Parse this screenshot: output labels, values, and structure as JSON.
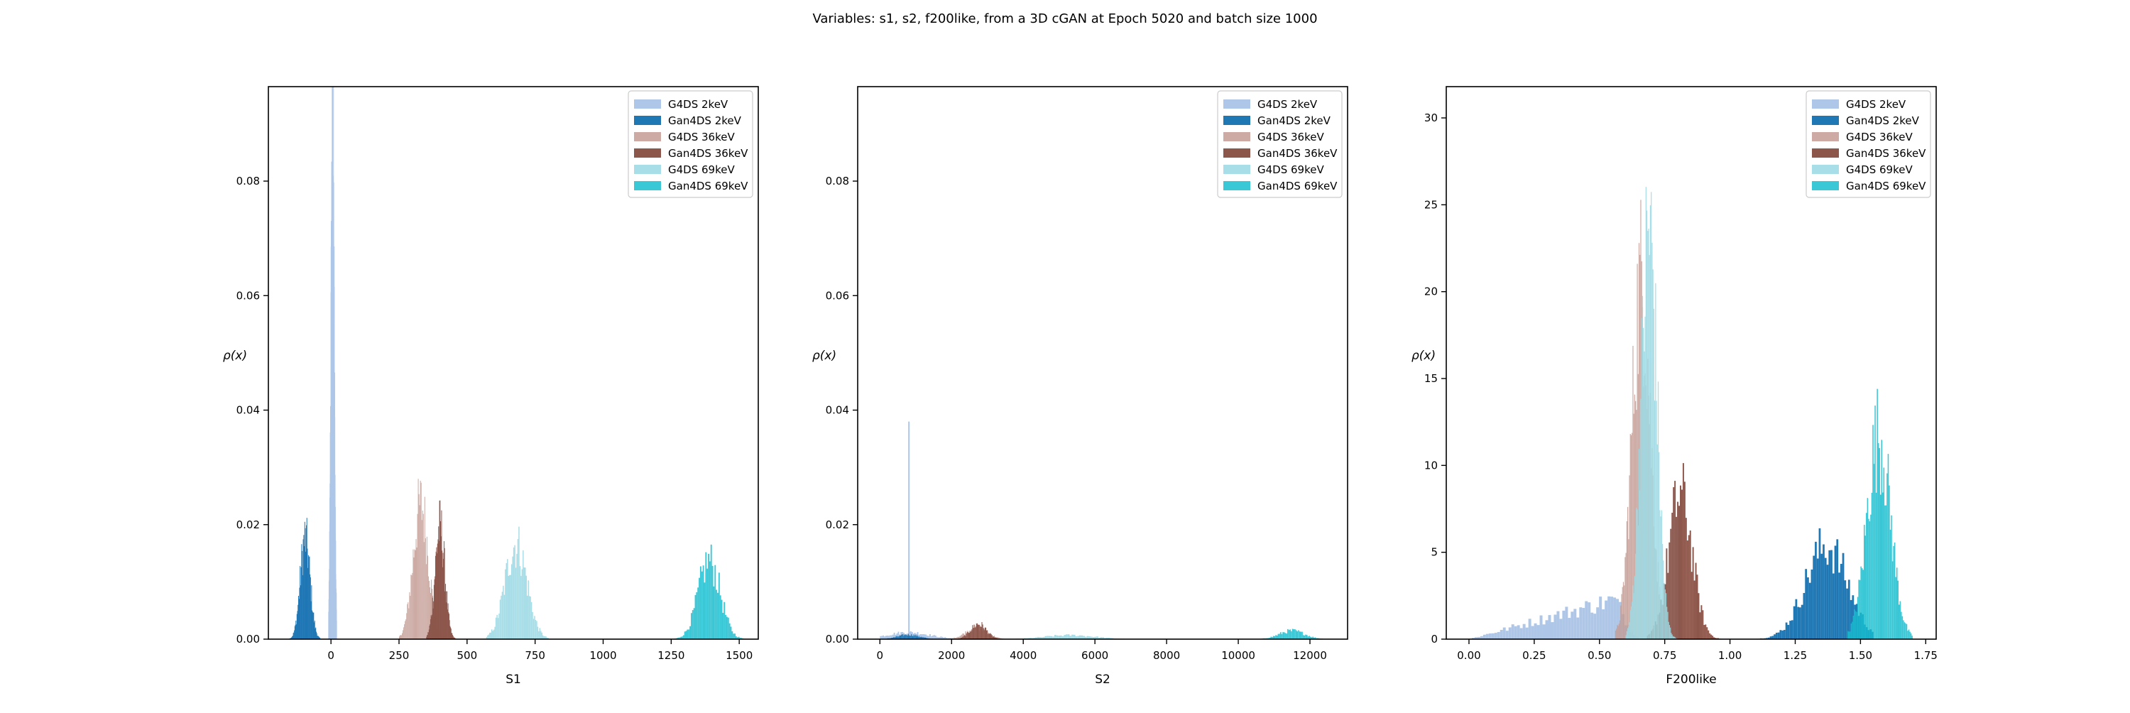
{
  "figure": {
    "title": "Variables: s1, s2, f200like, from a 3D cGAN at Epoch 5020 and batch size 1000"
  },
  "legend_labels": [
    "G4DS 2keV",
    "Gan4DS 2keV",
    "G4DS 36keV",
    "Gan4DS 36keV",
    "G4DS 69keV",
    "Gan4DS 69keV"
  ],
  "colors": {
    "g4ds_2kev": "#aec7e8",
    "gan4ds_2kev": "#1f77b4",
    "g4ds_36kev": "#c49c94",
    "gan4ds_36kev": "#8c564b",
    "g4ds_69kev": "#9edae5",
    "gan4ds_69kev": "#17becf"
  },
  "chart_data": [
    {
      "type": "bar",
      "subtype": "histogram",
      "xlabel": "S1",
      "ylabel": "ρ(x)",
      "xlim": [
        -230,
        1570
      ],
      "ylim": [
        0,
        0.0965
      ],
      "xticks": [
        0,
        250,
        500,
        750,
        1000,
        1250,
        1500
      ],
      "yticks": [
        0.0,
        0.02,
        0.04,
        0.06,
        0.08
      ],
      "ytick_labels": [
        "0.00",
        "0.02",
        "0.04",
        "0.06",
        "0.08"
      ],
      "legend_position": "upper right",
      "series": [
        {
          "name": "G4DS 2keV",
          "color": "#aec7e8",
          "alpha": 1.0,
          "center": 5,
          "spread": 6,
          "peak": 0.092,
          "range": [
            -10,
            20
          ]
        },
        {
          "name": "Gan4DS 2keV",
          "color": "#1f77b4",
          "alpha": 1.0,
          "center": -95,
          "spread": 18,
          "peak": 0.018,
          "range": [
            -155,
            -40
          ]
        },
        {
          "name": "G4DS 36keV",
          "color": "#c49c94",
          "alpha": 0.85,
          "center": 330,
          "spread": 28,
          "peak": 0.024,
          "range": [
            250,
            410
          ]
        },
        {
          "name": "Gan4DS 36keV",
          "color": "#8c564b",
          "alpha": 1.0,
          "center": 400,
          "spread": 18,
          "peak": 0.02,
          "range": [
            350,
            460
          ]
        },
        {
          "name": "G4DS 69keV",
          "color": "#9edae5",
          "alpha": 0.9,
          "center": 680,
          "spread": 40,
          "peak": 0.017,
          "range": [
            570,
            800
          ]
        },
        {
          "name": "Gan4DS 69keV",
          "color": "#17becf",
          "alpha": 0.85,
          "center": 1390,
          "spread": 40,
          "peak": 0.014,
          "range": [
            1240,
            1530
          ]
        }
      ]
    },
    {
      "type": "bar",
      "subtype": "histogram",
      "xlabel": "S2",
      "ylabel": "ρ(x)",
      "xlim": [
        -620,
        13050
      ],
      "ylim": [
        0,
        0.0965
      ],
      "xticks": [
        0,
        2000,
        4000,
        6000,
        8000,
        10000,
        12000
      ],
      "yticks": [
        0.0,
        0.02,
        0.04,
        0.06,
        0.08
      ],
      "ytick_labels": [
        "0.00",
        "0.02",
        "0.04",
        "0.06",
        "0.08"
      ],
      "legend_position": "upper right",
      "series": [
        {
          "name": "G4DS 2keV",
          "color": "#aec7e8",
          "alpha": 1.0,
          "center": 800,
          "spread": 600,
          "peak": 0.0012,
          "range": [
            0,
            2300
          ],
          "spike_at": 790,
          "spike_value": 0.038
        },
        {
          "name": "Gan4DS 2keV",
          "color": "#1f77b4",
          "alpha": 1.0,
          "center": 800,
          "spread": 300,
          "peak": 0.0008,
          "range": [
            200,
            1500
          ]
        },
        {
          "name": "G4DS 36keV",
          "color": "#c49c94",
          "alpha": 0.85,
          "center": 2700,
          "spread": 300,
          "peak": 0.002,
          "range": [
            1900,
            3500
          ]
        },
        {
          "name": "Gan4DS 36keV",
          "color": "#8c564b",
          "alpha": 1.0,
          "center": 2750,
          "spread": 220,
          "peak": 0.0027,
          "range": [
            2100,
            3400
          ]
        },
        {
          "name": "G4DS 69keV",
          "color": "#9edae5",
          "alpha": 0.9,
          "center": 5300,
          "spread": 700,
          "peak": 0.0007,
          "range": [
            3800,
            7000
          ]
        },
        {
          "name": "Gan4DS 69keV",
          "color": "#17becf",
          "alpha": 0.85,
          "center": 11500,
          "spread": 350,
          "peak": 0.0015,
          "range": [
            10500,
            12500
          ]
        }
      ]
    },
    {
      "type": "bar",
      "subtype": "histogram",
      "xlabel": "F200like",
      "ylabel": "ρ(x)",
      "xlim": [
        -0.087,
        1.79
      ],
      "ylim": [
        0,
        31.8
      ],
      "xticks": [
        0.0,
        0.25,
        0.5,
        0.75,
        1.0,
        1.25,
        1.5,
        1.75
      ],
      "xtick_labels": [
        "0.00",
        "0.25",
        "0.50",
        "0.75",
        "1.00",
        "1.25",
        "1.50",
        "1.75"
      ],
      "yticks": [
        0,
        5,
        10,
        15,
        20,
        25,
        30
      ],
      "legend_position": "upper right",
      "series": [
        {
          "name": "G4DS 2keV",
          "color": "#aec7e8",
          "alpha": 1.0,
          "center": 0.55,
          "spread": 0.2,
          "peak": 2.3,
          "range": [
            0.0,
            0.65
          ],
          "ramp": true
        },
        {
          "name": "Gan4DS 2keV",
          "color": "#1f77b4",
          "alpha": 1.0,
          "center": 1.37,
          "spread": 0.08,
          "peak": 5.5,
          "range": [
            1.1,
            1.55
          ]
        },
        {
          "name": "G4DS 36keV",
          "color": "#c49c94",
          "alpha": 0.85,
          "center": 0.66,
          "spread": 0.035,
          "peak": 21,
          "range": [
            0.56,
            0.76
          ]
        },
        {
          "name": "Gan4DS 36keV",
          "color": "#8c564b",
          "alpha": 1.0,
          "center": 0.81,
          "spread": 0.045,
          "peak": 8.5,
          "range": [
            0.68,
            1.0
          ]
        },
        {
          "name": "G4DS 69keV",
          "color": "#9edae5",
          "alpha": 0.9,
          "center": 0.69,
          "spread": 0.03,
          "peak": 24,
          "range": [
            0.6,
            0.8
          ]
        },
        {
          "name": "Gan4DS 69keV",
          "color": "#17becf",
          "alpha": 0.85,
          "center": 1.57,
          "spread": 0.045,
          "peak": 12,
          "range": [
            1.45,
            1.7
          ]
        }
      ]
    }
  ]
}
